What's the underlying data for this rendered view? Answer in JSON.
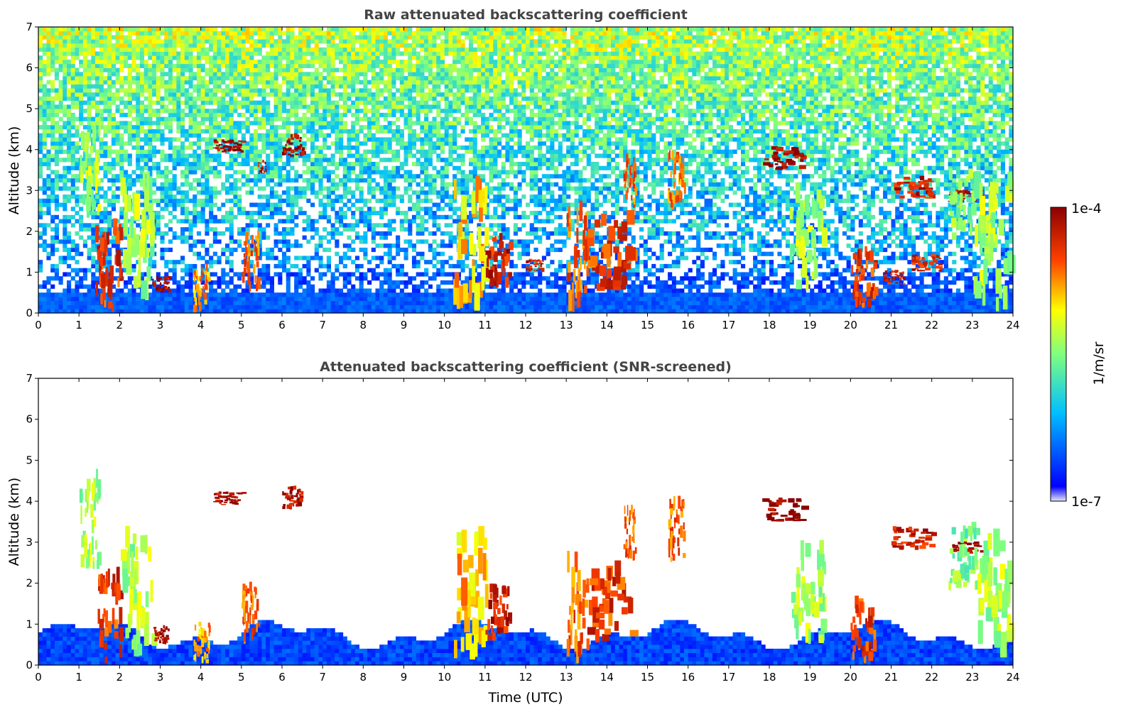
{
  "chart_data": [
    {
      "type": "heatmap",
      "title": "Raw attenuated backscattering coefficient",
      "xlabel": "",
      "ylabel": "Altitude (km)",
      "xlim": [
        0,
        24
      ],
      "ylim": [
        0,
        7
      ],
      "xticks": [
        "0",
        "1",
        "2",
        "3",
        "4",
        "5",
        "6",
        "7",
        "8",
        "9",
        "10",
        "11",
        "12",
        "13",
        "14",
        "15",
        "16",
        "17",
        "18",
        "19",
        "20",
        "21",
        "22",
        "23",
        "24"
      ],
      "yticks": [
        "0",
        "1",
        "2",
        "3",
        "4",
        "5",
        "6",
        "7"
      ],
      "grid": false,
      "screened": false,
      "background": "noisy signal increasing with altitude; strong blue boundary layer 0-0.5 km",
      "features": [
        {
          "t0": 1.0,
          "t1": 1.5,
          "z0": 2.2,
          "z1": 4.4,
          "level": 0.55
        },
        {
          "t0": 1.4,
          "t1": 2.0,
          "z0": 0.0,
          "z1": 2.0,
          "level": 0.85
        },
        {
          "t0": 2.0,
          "t1": 2.8,
          "z0": 0.2,
          "z1": 3.0,
          "level": 0.55
        },
        {
          "t0": 2.8,
          "t1": 3.2,
          "z0": 0.5,
          "z1": 0.9,
          "level": 0.95
        },
        {
          "t0": 3.8,
          "t1": 4.2,
          "z0": 0.0,
          "z1": 1.0,
          "level": 0.75
        },
        {
          "t0": 4.3,
          "t1": 5.0,
          "z0": 3.9,
          "z1": 4.2,
          "level": 0.98
        },
        {
          "t0": 5.0,
          "t1": 5.4,
          "z0": 0.5,
          "z1": 1.8,
          "level": 0.8
        },
        {
          "t0": 5.4,
          "t1": 5.6,
          "z0": 3.4,
          "z1": 3.7,
          "level": 0.95
        },
        {
          "t0": 6.0,
          "t1": 6.5,
          "z0": 3.8,
          "z1": 4.3,
          "level": 0.95
        },
        {
          "t0": 10.2,
          "t1": 11.0,
          "z0": 0.0,
          "z1": 3.0,
          "level": 0.7
        },
        {
          "t0": 11.0,
          "t1": 11.6,
          "z0": 0.6,
          "z1": 1.8,
          "level": 0.9
        },
        {
          "t0": 12.0,
          "t1": 12.4,
          "z0": 1.0,
          "z1": 1.3,
          "level": 0.9
        },
        {
          "t0": 13.0,
          "t1": 13.5,
          "z0": 0.0,
          "z1": 2.3,
          "level": 0.8
        },
        {
          "t0": 13.5,
          "t1": 14.6,
          "z0": 0.5,
          "z1": 2.2,
          "level": 0.85
        },
        {
          "t0": 14.4,
          "t1": 14.7,
          "z0": 2.5,
          "z1": 3.7,
          "level": 0.8
        },
        {
          "t0": 15.5,
          "t1": 15.9,
          "z0": 2.5,
          "z1": 3.9,
          "level": 0.8
        },
        {
          "t0": 17.8,
          "t1": 18.8,
          "z0": 3.5,
          "z1": 4.0,
          "level": 0.98
        },
        {
          "t0": 18.5,
          "t1": 19.3,
          "z0": 0.5,
          "z1": 2.7,
          "level": 0.55
        },
        {
          "t0": 20.0,
          "t1": 20.6,
          "z0": 0.0,
          "z1": 1.4,
          "level": 0.85
        },
        {
          "t0": 20.8,
          "t1": 21.3,
          "z0": 0.7,
          "z1": 1.0,
          "level": 0.9
        },
        {
          "t0": 21.0,
          "t1": 22.0,
          "z0": 2.8,
          "z1": 3.3,
          "level": 0.9
        },
        {
          "t0": 21.5,
          "t1": 22.2,
          "z0": 1.0,
          "z1": 1.4,
          "level": 0.9
        },
        {
          "t0": 22.4,
          "t1": 23.2,
          "z0": 2.7,
          "z1": 3.0,
          "level": 0.98
        },
        {
          "t0": 22.4,
          "t1": 23.1,
          "z0": 1.8,
          "z1": 3.3,
          "level": 0.5
        },
        {
          "t0": 23.0,
          "t1": 23.9,
          "z0": 0.0,
          "z1": 3.0,
          "level": 0.55
        }
      ]
    },
    {
      "type": "heatmap",
      "title": "Attenuated backscattering coefficient (SNR-screened)",
      "xlabel": "Time (UTC)",
      "ylabel": "Altitude (km)",
      "xlim": [
        0,
        24
      ],
      "ylim": [
        0,
        7
      ],
      "xticks": [
        "0",
        "1",
        "2",
        "3",
        "4",
        "5",
        "6",
        "7",
        "8",
        "9",
        "10",
        "11",
        "12",
        "13",
        "14",
        "15",
        "16",
        "17",
        "18",
        "19",
        "20",
        "21",
        "22",
        "23",
        "24"
      ],
      "yticks": [
        "0",
        "1",
        "2",
        "3",
        "4",
        "5",
        "6",
        "7"
      ],
      "grid": false,
      "screened": true,
      "background": "white above the screened boundary layer; blue boundary layer roughly 0-1 km",
      "features": [
        {
          "t0": 1.0,
          "t1": 1.5,
          "z0": 2.2,
          "z1": 4.4,
          "level": 0.55
        },
        {
          "t0": 1.4,
          "t1": 2.0,
          "z0": 0.0,
          "z1": 2.0,
          "level": 0.85
        },
        {
          "t0": 2.0,
          "t1": 2.8,
          "z0": 0.2,
          "z1": 3.0,
          "level": 0.55
        },
        {
          "t0": 2.8,
          "t1": 3.2,
          "z0": 0.5,
          "z1": 0.9,
          "level": 0.95
        },
        {
          "t0": 3.8,
          "t1": 4.2,
          "z0": 0.0,
          "z1": 1.0,
          "level": 0.75
        },
        {
          "t0": 4.3,
          "t1": 5.0,
          "z0": 3.9,
          "z1": 4.2,
          "level": 0.98
        },
        {
          "t0": 5.0,
          "t1": 5.4,
          "z0": 0.5,
          "z1": 1.8,
          "level": 0.8
        },
        {
          "t0": 6.0,
          "t1": 6.5,
          "z0": 3.8,
          "z1": 4.3,
          "level": 0.95
        },
        {
          "t0": 10.2,
          "t1": 11.0,
          "z0": 0.0,
          "z1": 3.0,
          "level": 0.7
        },
        {
          "t0": 11.0,
          "t1": 11.6,
          "z0": 0.6,
          "z1": 1.8,
          "level": 0.9
        },
        {
          "t0": 13.0,
          "t1": 13.5,
          "z0": 0.0,
          "z1": 2.3,
          "level": 0.8
        },
        {
          "t0": 13.5,
          "t1": 14.6,
          "z0": 0.5,
          "z1": 2.2,
          "level": 0.85
        },
        {
          "t0": 14.4,
          "t1": 14.7,
          "z0": 2.5,
          "z1": 3.7,
          "level": 0.8
        },
        {
          "t0": 15.5,
          "t1": 15.9,
          "z0": 2.5,
          "z1": 3.9,
          "level": 0.8
        },
        {
          "t0": 17.8,
          "t1": 18.8,
          "z0": 3.5,
          "z1": 4.0,
          "level": 0.98
        },
        {
          "t0": 18.5,
          "t1": 19.3,
          "z0": 0.5,
          "z1": 2.7,
          "level": 0.55
        },
        {
          "t0": 20.0,
          "t1": 20.6,
          "z0": 0.0,
          "z1": 1.4,
          "level": 0.85
        },
        {
          "t0": 21.0,
          "t1": 22.0,
          "z0": 2.8,
          "z1": 3.3,
          "level": 0.9
        },
        {
          "t0": 22.4,
          "t1": 23.2,
          "z0": 2.7,
          "z1": 3.0,
          "level": 0.98
        },
        {
          "t0": 22.4,
          "t1": 23.1,
          "z0": 1.8,
          "z1": 3.3,
          "level": 0.5
        },
        {
          "t0": 23.0,
          "t1": 23.9,
          "z0": 0.0,
          "z1": 3.0,
          "level": 0.55
        }
      ]
    }
  ],
  "colorbar": {
    "label": "1/m/sr",
    "max_label": "1e-4",
    "min_label": "1e-7",
    "colormap": "jet",
    "stops": [
      "#e6e6f8",
      "#0000ff",
      "#00bfff",
      "#7fff7f",
      "#ffff00",
      "#ff4000",
      "#8b0000"
    ]
  }
}
